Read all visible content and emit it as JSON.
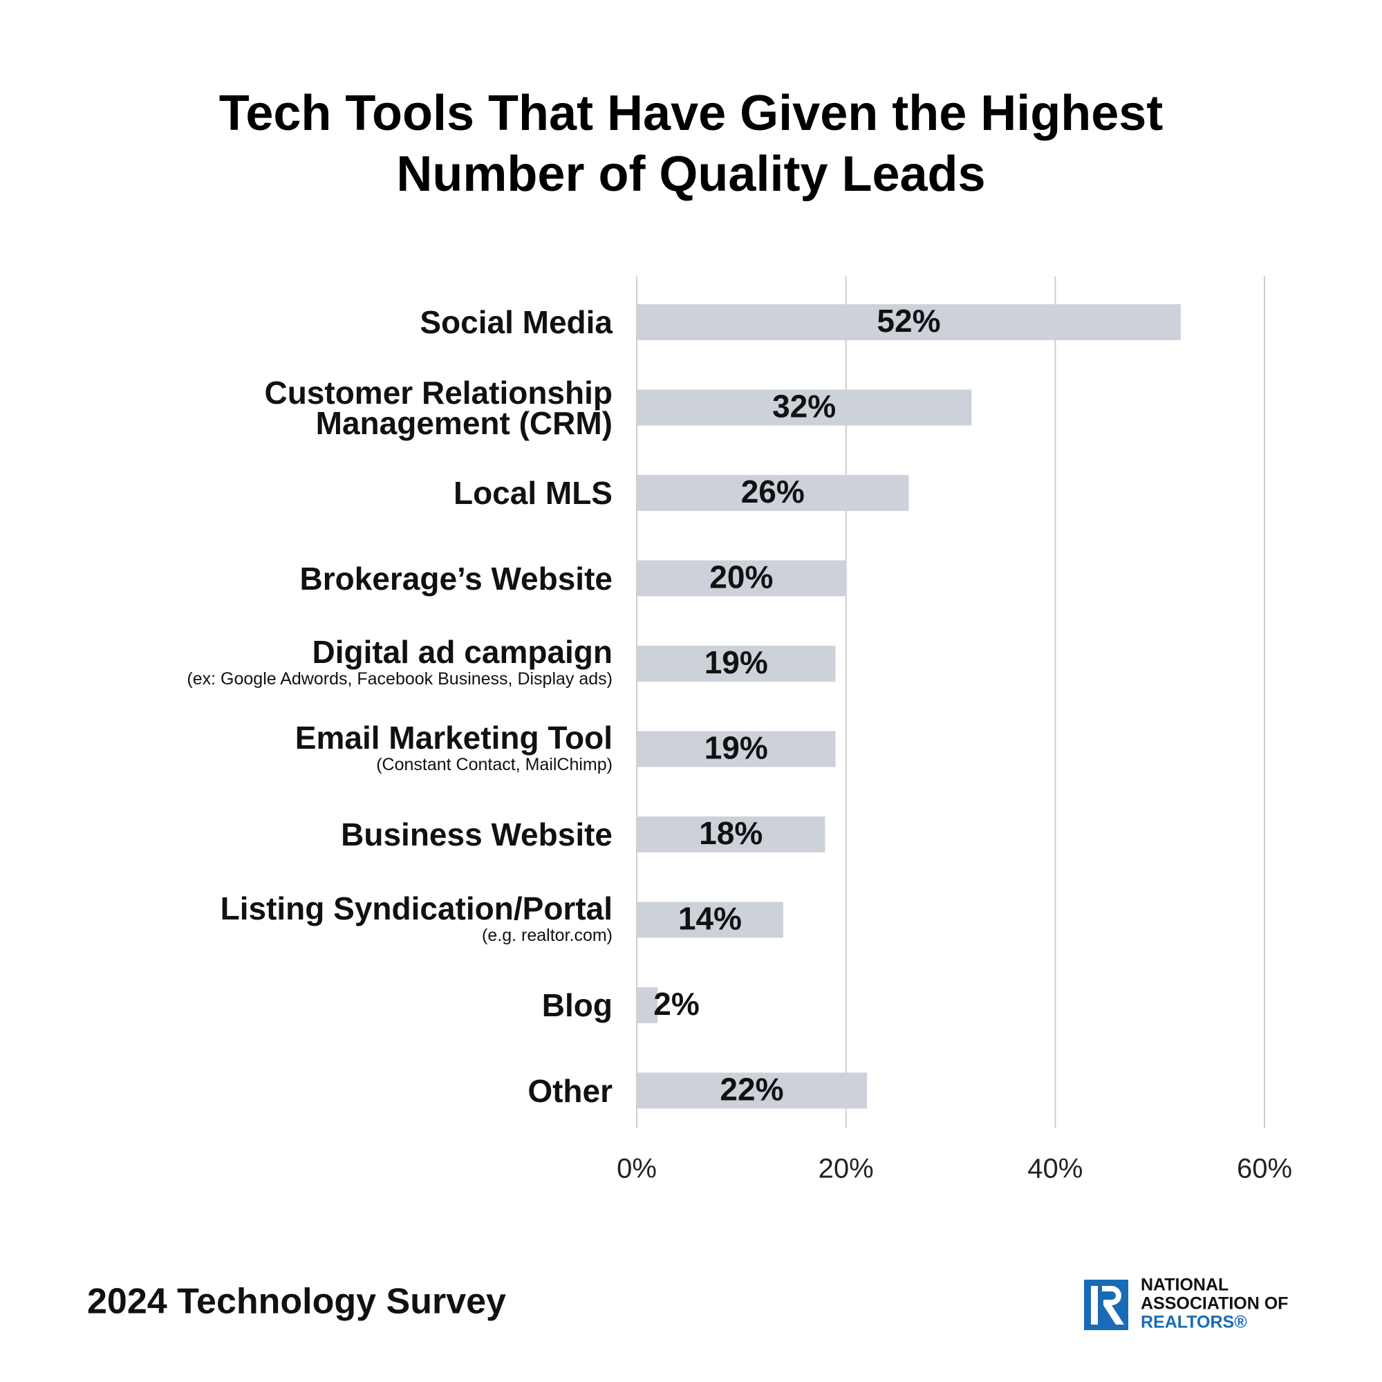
{
  "chart_data": {
    "type": "barh",
    "title": "Tech Tools That Have Given the Highest Number of Quality Leads",
    "categories": [
      "Social Media",
      "Customer Relationship Management (CRM)",
      "Local MLS",
      "Brokerage’s Website",
      "Digital ad campaign",
      "Email Marketing Tool",
      "Business Website",
      "Listing Syndication/Portal",
      "Blog",
      "Other"
    ],
    "sublabels": [
      null,
      null,
      null,
      null,
      "(ex: Google Adwords, Facebook Business, Display ads)",
      "(Constant Contact, MailChimp)",
      null,
      "(e.g. realtor.com)",
      null,
      null
    ],
    "values": [
      52,
      32,
      26,
      20,
      19,
      19,
      18,
      14,
      2,
      22
    ],
    "value_labels": [
      "52%",
      "32%",
      "26%",
      "20%",
      "19%",
      "19%",
      "18%",
      "14%",
      "2%",
      "22%"
    ],
    "color": "#cdd1d9",
    "xlim": [
      0,
      60
    ],
    "xticks": [
      {
        "value": 0,
        "label": "0%"
      },
      {
        "value": 20,
        "label": "20%"
      },
      {
        "value": 40,
        "label": "40%"
      },
      {
        "value": 60,
        "label": "60%"
      }
    ],
    "grid": true
  },
  "footer": {
    "source": "2024 Technology Survey",
    "logo": [
      "NATIONAL",
      "ASSOCIATION OF",
      "REALTORS®"
    ]
  }
}
